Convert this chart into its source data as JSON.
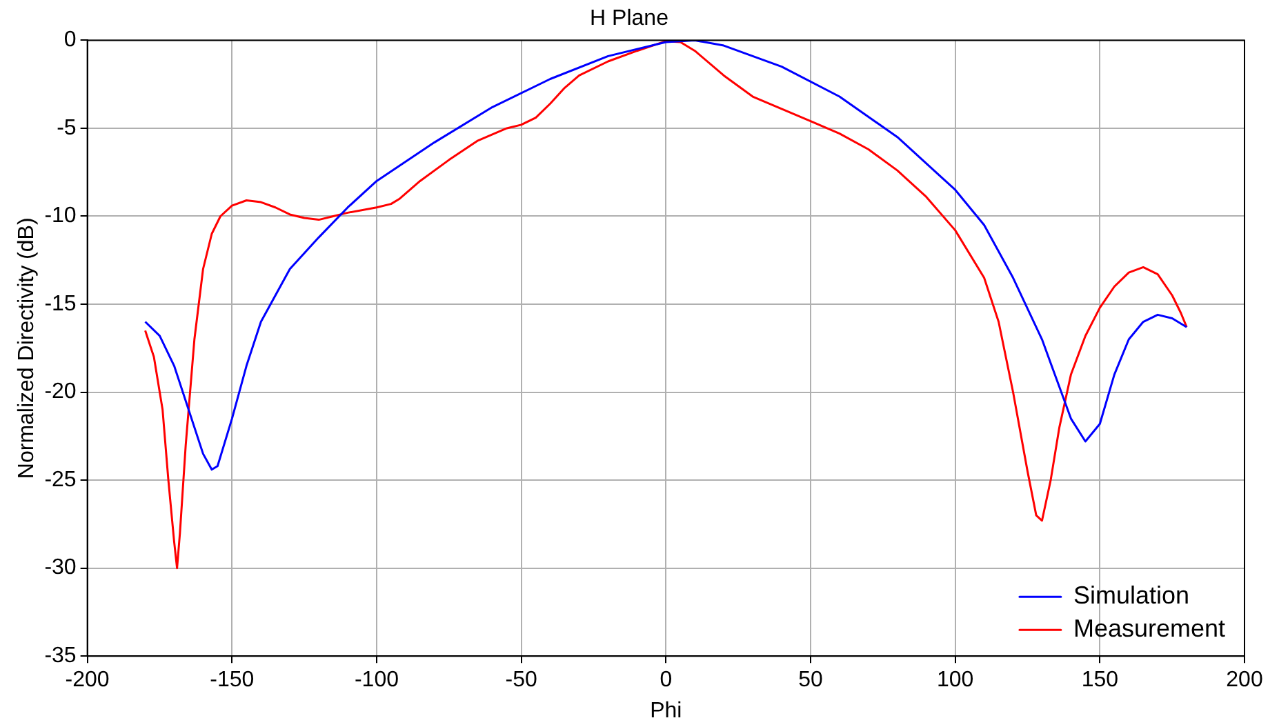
{
  "chart_data": {
    "type": "line",
    "title": "H Plane",
    "xlabel": "Phi",
    "ylabel": "Normalized Directivity (dB)",
    "xlim": [
      -200,
      200
    ],
    "xticks": [
      -200,
      -150,
      -100,
      -50,
      0,
      50,
      100,
      150,
      200
    ],
    "ylim": [
      -35,
      0
    ],
    "yticks": [
      -35,
      -30,
      -25,
      -20,
      -15,
      -10,
      -5,
      0
    ],
    "grid": true,
    "legend": "bottom right",
    "marker": "none",
    "line_style": "solid",
    "series": [
      {
        "name": "Simulation",
        "color": "#0000ff",
        "x": [
          -180,
          -175,
          -170,
          -165,
          -160,
          -157,
          -155,
          -150,
          -145,
          -140,
          -130,
          -120,
          -110,
          -100,
          -80,
          -60,
          -40,
          -20,
          0,
          10,
          20,
          40,
          60,
          80,
          100,
          110,
          120,
          130,
          140,
          145,
          150,
          155,
          160,
          165,
          170,
          175,
          180
        ],
        "values": [
          -16,
          -16.8,
          -18.5,
          -21,
          -23.5,
          -24.4,
          -24.2,
          -21.5,
          -18.5,
          -16,
          -13,
          -11.2,
          -9.5,
          -8,
          -5.8,
          -3.8,
          -2.2,
          -0.9,
          -0.1,
          0,
          -0.3,
          -1.5,
          -3.2,
          -5.5,
          -8.5,
          -10.5,
          -13.5,
          -17,
          -21.5,
          -22.8,
          -21.8,
          -19,
          -17,
          -16,
          -15.6,
          -15.8,
          -16.3
        ]
      },
      {
        "name": "Measurement",
        "color": "#ff0000",
        "x": [
          -180,
          -177,
          -174,
          -172,
          -170,
          -169,
          -168,
          -166,
          -163,
          -160,
          -157,
          -154,
          -150,
          -145,
          -140,
          -135,
          -130,
          -125,
          -120,
          -115,
          -110,
          -100,
          -95,
          -92,
          -85,
          -75,
          -65,
          -55,
          -50,
          -45,
          -40,
          -35,
          -30,
          -20,
          -10,
          0,
          5,
          10,
          20,
          30,
          40,
          50,
          60,
          70,
          80,
          90,
          100,
          110,
          115,
          120,
          125,
          128,
          130,
          133,
          136,
          140,
          145,
          150,
          155,
          160,
          165,
          170,
          175,
          178,
          180
        ],
        "values": [
          -16.5,
          -18,
          -21,
          -25,
          -28.5,
          -30,
          -28,
          -23,
          -17,
          -13,
          -11,
          -10,
          -9.4,
          -9.1,
          -9.2,
          -9.5,
          -9.9,
          -10.1,
          -10.2,
          -10,
          -9.8,
          -9.5,
          -9.3,
          -9,
          -8,
          -6.8,
          -5.7,
          -5,
          -4.8,
          -4.4,
          -3.6,
          -2.7,
          -2,
          -1.2,
          -0.6,
          -0.05,
          -0.1,
          -0.6,
          -2,
          -3.2,
          -3.9,
          -4.6,
          -5.3,
          -6.2,
          -7.4,
          -8.9,
          -10.8,
          -13.5,
          -16,
          -20,
          -24.5,
          -27,
          -27.3,
          -25,
          -22,
          -19,
          -16.8,
          -15.2,
          -14,
          -13.2,
          -12.9,
          -13.3,
          -14.5,
          -15.5,
          -16.3
        ]
      }
    ]
  }
}
